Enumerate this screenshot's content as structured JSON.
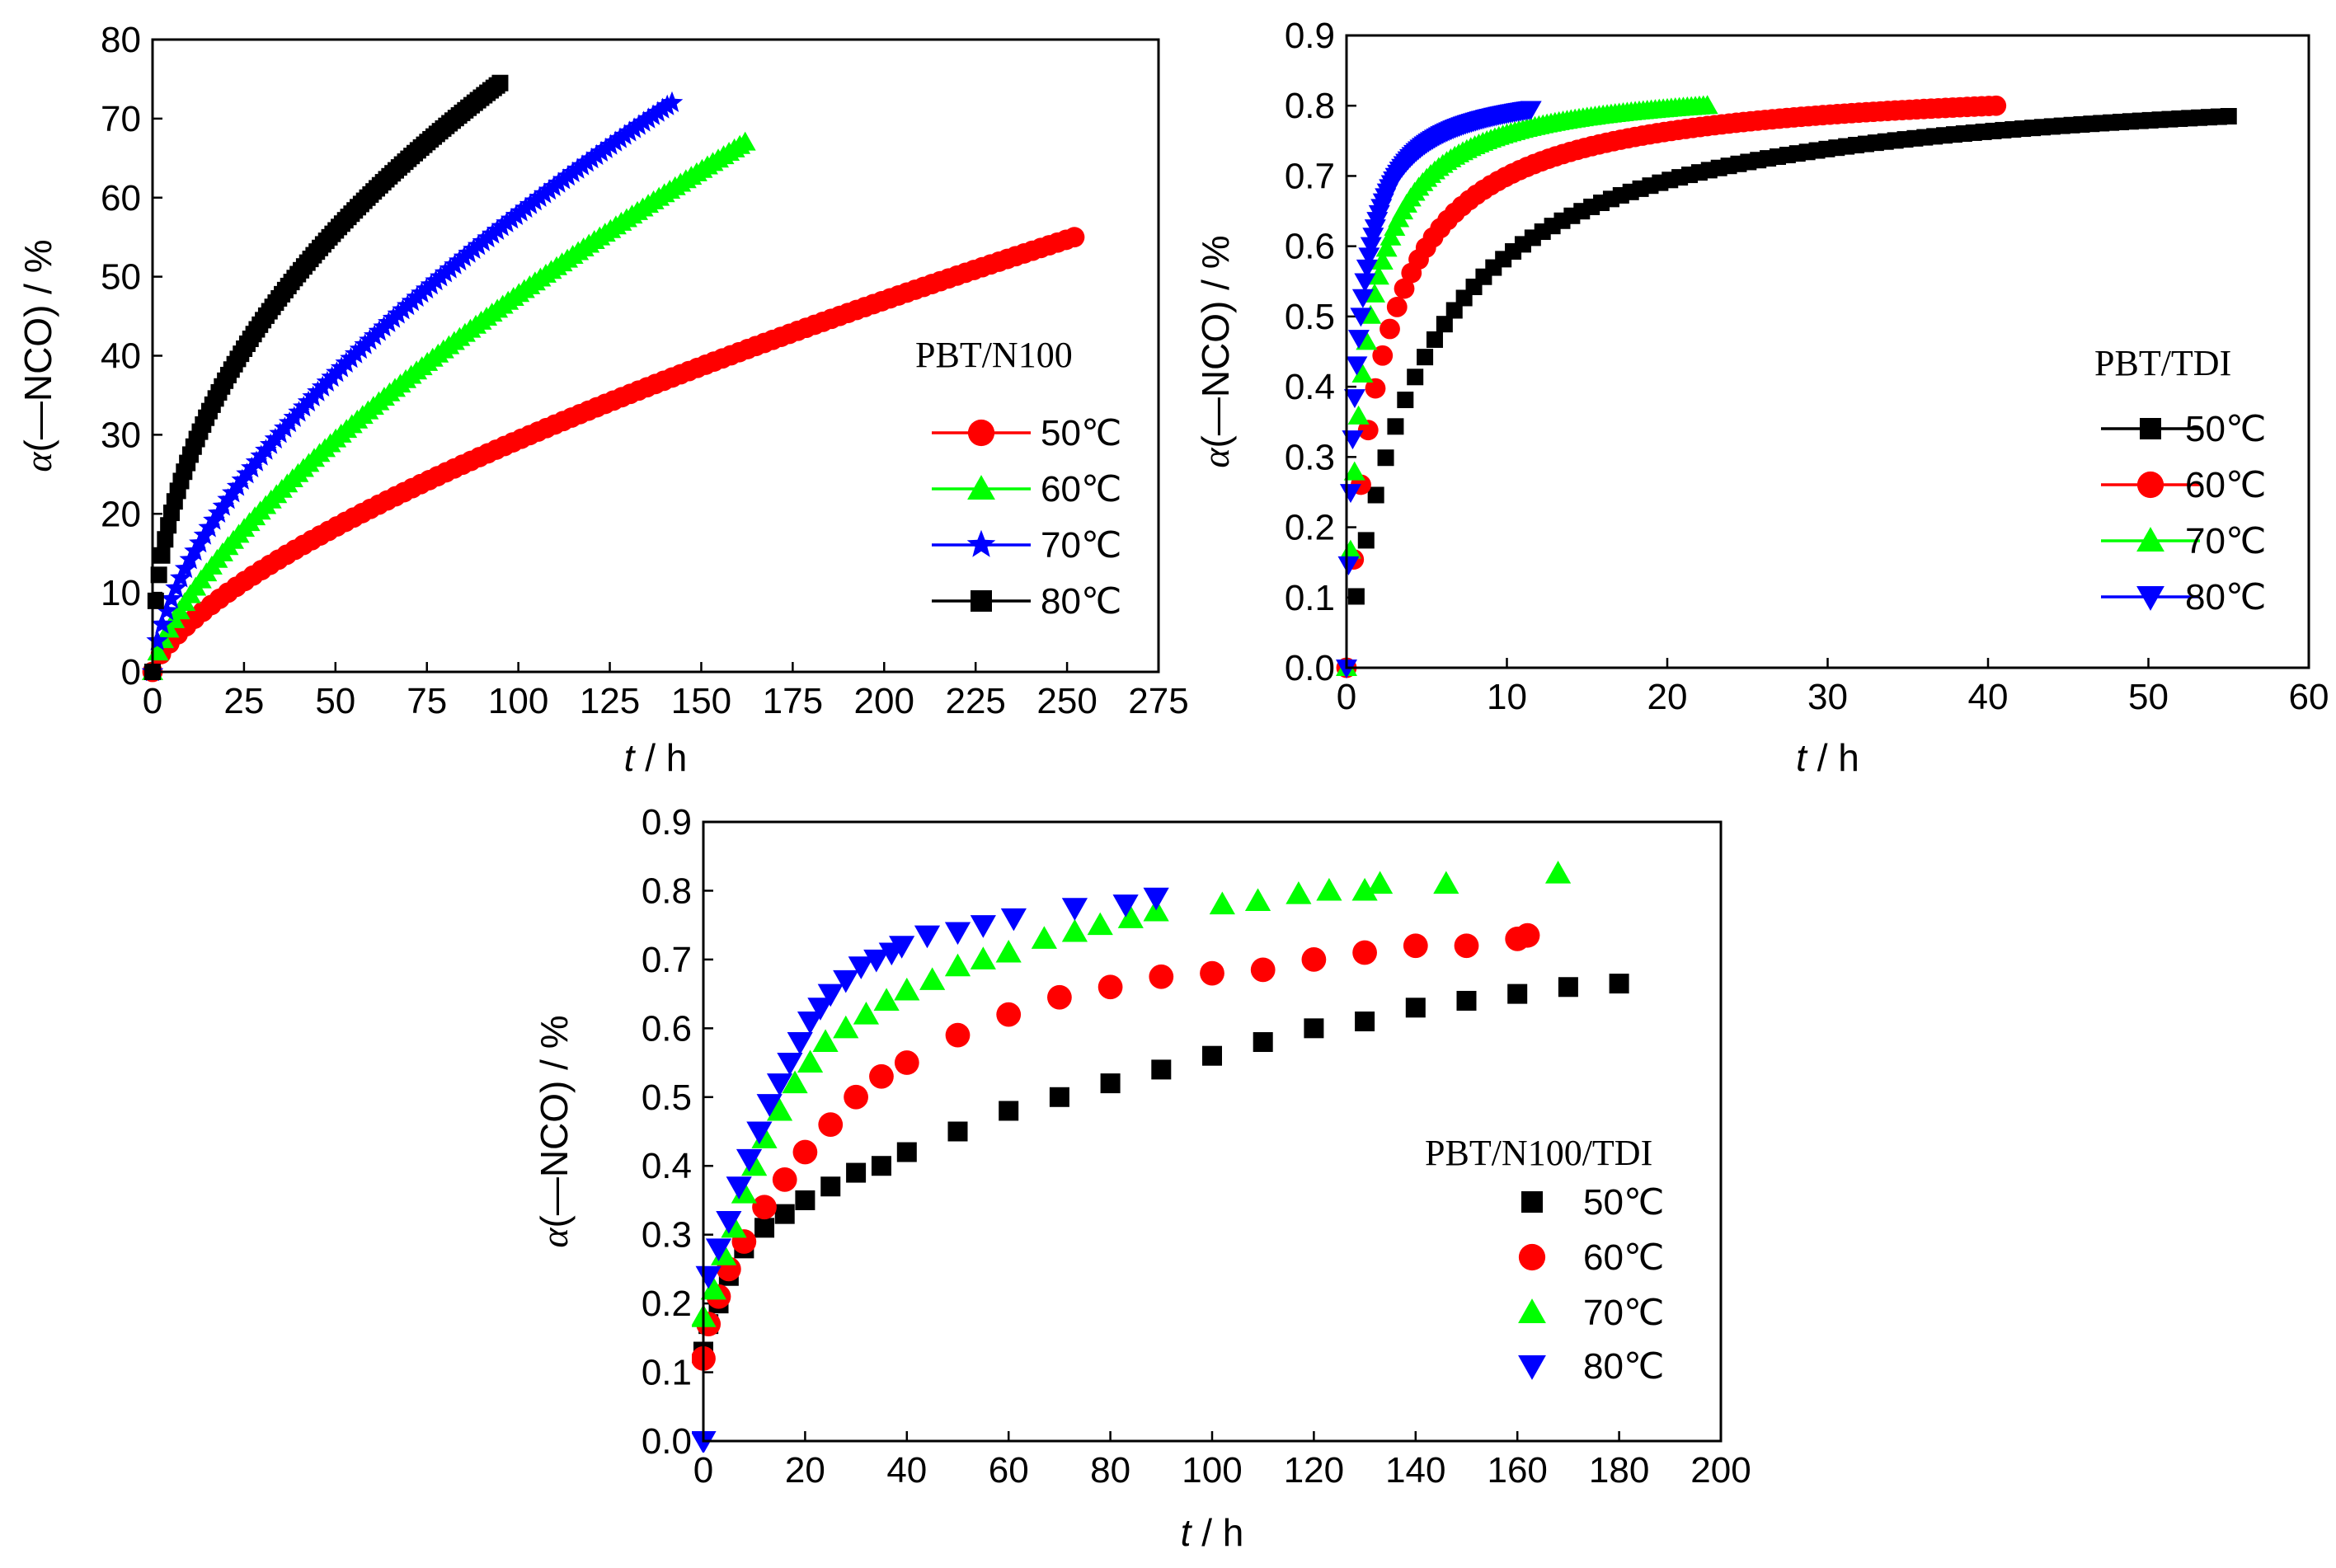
{
  "chart_data": [
    {
      "id": "n100",
      "type": "scatter",
      "title": "PBT/N100",
      "xlabel_italic": "t",
      "xlabel_rest": " / h",
      "ylabel_italic": "α",
      "ylabel_rest": "(—NCO) / %",
      "xlim": [
        0,
        275
      ],
      "ylim": [
        0,
        80
      ],
      "xticks": [
        0,
        25,
        50,
        75,
        100,
        125,
        150,
        175,
        200,
        225,
        250,
        275
      ],
      "xtick_labels": [
        "0",
        "25",
        "50",
        "75",
        "100",
        "125",
        "150",
        "175",
        "200",
        "225",
        "250",
        "275"
      ],
      "yticks": [
        0,
        10,
        20,
        30,
        40,
        50,
        60,
        70,
        80
      ],
      "ytick_labels": [
        "0",
        "10",
        "20",
        "30",
        "40",
        "50",
        "60",
        "70",
        "80"
      ],
      "legend_style": "line",
      "legend_placement": "right",
      "series": [
        {
          "name": "50℃",
          "color": "#ff0000",
          "marker": "circle",
          "tmax": 252,
          "amax": 55,
          "k": 0.0035
        },
        {
          "name": "60℃",
          "color": "#00ff00",
          "marker": "triangle",
          "tmax": 162,
          "amax": 67,
          "k": 0.0022
        },
        {
          "name": "70℃",
          "color": "#0000ff",
          "marker": "star",
          "tmax": 142,
          "amax": 72,
          "k": 0.013
        },
        {
          "name": "80℃",
          "color": "#000000",
          "marker": "square",
          "tmax": 95,
          "amax": 74.5,
          "k": 0.028
        }
      ]
    },
    {
      "id": "tdi",
      "type": "scatter",
      "title": "PBT/TDI",
      "xlabel_italic": "t",
      "xlabel_rest": " / h",
      "ylabel_italic": "α",
      "ylabel_rest": "(—NCO) / %",
      "xlim": [
        0,
        60
      ],
      "ylim": [
        0,
        0.9
      ],
      "xticks": [
        0,
        10,
        20,
        30,
        40,
        50,
        60
      ],
      "xtick_labels": [
        "0",
        "10",
        "20",
        "30",
        "40",
        "50",
        "60"
      ],
      "yticks": [
        0,
        0.1,
        0.2,
        0.3,
        0.4,
        0.5,
        0.6,
        0.7,
        0.8,
        0.9
      ],
      "ytick_labels": [
        "0.0",
        "0.1",
        "0.2",
        "0.3",
        "0.4",
        "0.5",
        "0.6",
        "0.7",
        "0.8",
        "0.9"
      ],
      "legend_style": "line",
      "legend_placement": "right",
      "series": [
        {
          "name": "50℃",
          "color": "#000000",
          "marker": "square",
          "tmax": 55,
          "amax": 0.785,
          "k": 4.5
        },
        {
          "name": "60℃",
          "color": "#ff0000",
          "marker": "circle",
          "tmax": 40.5,
          "amax": 0.8,
          "k": 2.0
        },
        {
          "name": "70℃",
          "color": "#00ff00",
          "marker": "triangle",
          "tmax": 22.5,
          "amax": 0.8,
          "k": 1.0
        },
        {
          "name": "80℃",
          "color": "#0000ff",
          "marker": "triangle-down",
          "tmax": 11.5,
          "amax": 0.795,
          "k": 0.6
        }
      ]
    },
    {
      "id": "mix",
      "type": "scatter",
      "title": "PBT/N100/TDI",
      "xlabel_italic": "t",
      "xlabel_rest": " / h",
      "ylabel_italic": "α",
      "ylabel_rest": "(—NCO) / %",
      "xlim": [
        0,
        200
      ],
      "ylim": [
        0,
        0.9
      ],
      "xticks": [
        0,
        20,
        40,
        60,
        80,
        100,
        120,
        140,
        160,
        180,
        200
      ],
      "xtick_labels": [
        "0",
        "20",
        "40",
        "60",
        "80",
        "100",
        "120",
        "140",
        "160",
        "180",
        "200"
      ],
      "yticks": [
        0,
        0.1,
        0.2,
        0.3,
        0.4,
        0.5,
        0.6,
        0.7,
        0.8,
        0.9
      ],
      "ytick_labels": [
        "0.0",
        "0.1",
        "0.2",
        "0.3",
        "0.4",
        "0.5",
        "0.6",
        "0.7",
        "0.8",
        "0.9"
      ],
      "legend_style": "marker",
      "legend_placement": "right",
      "series": [
        {
          "name": "50℃",
          "color": "#000000",
          "marker": "square",
          "points": [
            [
              0,
              0.13
            ],
            [
              1,
              0.17
            ],
            [
              3,
              0.2
            ],
            [
              5,
              0.24
            ],
            [
              8,
              0.28
            ],
            [
              12,
              0.31
            ],
            [
              16,
              0.33
            ],
            [
              20,
              0.35
            ],
            [
              25,
              0.37
            ],
            [
              30,
              0.39
            ],
            [
              35,
              0.4
            ],
            [
              40,
              0.42
            ],
            [
              50,
              0.45
            ],
            [
              60,
              0.48
            ],
            [
              70,
              0.5
            ],
            [
              80,
              0.52
            ],
            [
              90,
              0.54
            ],
            [
              100,
              0.56
            ],
            [
              110,
              0.58
            ],
            [
              120,
              0.6
            ],
            [
              130,
              0.61
            ],
            [
              140,
              0.63
            ],
            [
              150,
              0.64
            ],
            [
              160,
              0.65
            ],
            [
              170,
              0.66
            ],
            [
              180,
              0.665
            ]
          ]
        },
        {
          "name": "60℃",
          "color": "#ff0000",
          "marker": "circle",
          "points": [
            [
              0,
              0.12
            ],
            [
              1,
              0.17
            ],
            [
              3,
              0.21
            ],
            [
              5,
              0.25
            ],
            [
              8,
              0.29
            ],
            [
              12,
              0.34
            ],
            [
              16,
              0.38
            ],
            [
              20,
              0.42
            ],
            [
              25,
              0.46
            ],
            [
              30,
              0.5
            ],
            [
              35,
              0.53
            ],
            [
              40,
              0.55
            ],
            [
              50,
              0.59
            ],
            [
              60,
              0.62
            ],
            [
              70,
              0.645
            ],
            [
              80,
              0.66
            ],
            [
              90,
              0.675
            ],
            [
              100,
              0.68
            ],
            [
              110,
              0.685
            ],
            [
              120,
              0.7
            ],
            [
              130,
              0.71
            ],
            [
              140,
              0.72
            ],
            [
              150,
              0.72
            ],
            [
              160,
              0.73
            ],
            [
              162,
              0.735
            ]
          ]
        },
        {
          "name": "70℃",
          "color": "#00ff00",
          "marker": "triangle",
          "points": [
            [
              0,
              0.18
            ],
            [
              2,
              0.22
            ],
            [
              4,
              0.27
            ],
            [
              6,
              0.31
            ],
            [
              8,
              0.36
            ],
            [
              10,
              0.4
            ],
            [
              12,
              0.44
            ],
            [
              15,
              0.48
            ],
            [
              18,
              0.52
            ],
            [
              21,
              0.55
            ],
            [
              24,
              0.58
            ],
            [
              28,
              0.6
            ],
            [
              32,
              0.62
            ],
            [
              36,
              0.64
            ],
            [
              40,
              0.655
            ],
            [
              45,
              0.67
            ],
            [
              50,
              0.69
            ],
            [
              55,
              0.7
            ],
            [
              60,
              0.71
            ],
            [
              67,
              0.73
            ],
            [
              73,
              0.74
            ],
            [
              78,
              0.75
            ],
            [
              84,
              0.76
            ],
            [
              89,
              0.77
            ],
            [
              102,
              0.78
            ],
            [
              109,
              0.785
            ],
            [
              117,
              0.795
            ],
            [
              123,
              0.8
            ],
            [
              130,
              0.8
            ],
            [
              133,
              0.81
            ],
            [
              146,
              0.81
            ],
            [
              168,
              0.825
            ]
          ]
        },
        {
          "name": "80℃",
          "color": "#0000ff",
          "marker": "triangle-down",
          "points": [
            [
              0,
              0.0
            ],
            [
              1,
              0.24
            ],
            [
              3,
              0.28
            ],
            [
              5,
              0.32
            ],
            [
              7,
              0.37
            ],
            [
              9,
              0.41
            ],
            [
              11,
              0.45
            ],
            [
              13,
              0.49
            ],
            [
              15,
              0.52
            ],
            [
              17,
              0.55
            ],
            [
              19,
              0.58
            ],
            [
              21,
              0.61
            ],
            [
              23,
              0.63
            ],
            [
              25,
              0.65
            ],
            [
              28,
              0.67
            ],
            [
              31,
              0.69
            ],
            [
              34,
              0.7
            ],
            [
              37,
              0.71
            ],
            [
              39,
              0.72
            ],
            [
              44,
              0.735
            ],
            [
              50,
              0.74
            ],
            [
              55,
              0.75
            ],
            [
              61,
              0.76
            ],
            [
              73,
              0.775
            ],
            [
              83,
              0.78
            ],
            [
              89,
              0.79
            ]
          ]
        }
      ]
    }
  ]
}
